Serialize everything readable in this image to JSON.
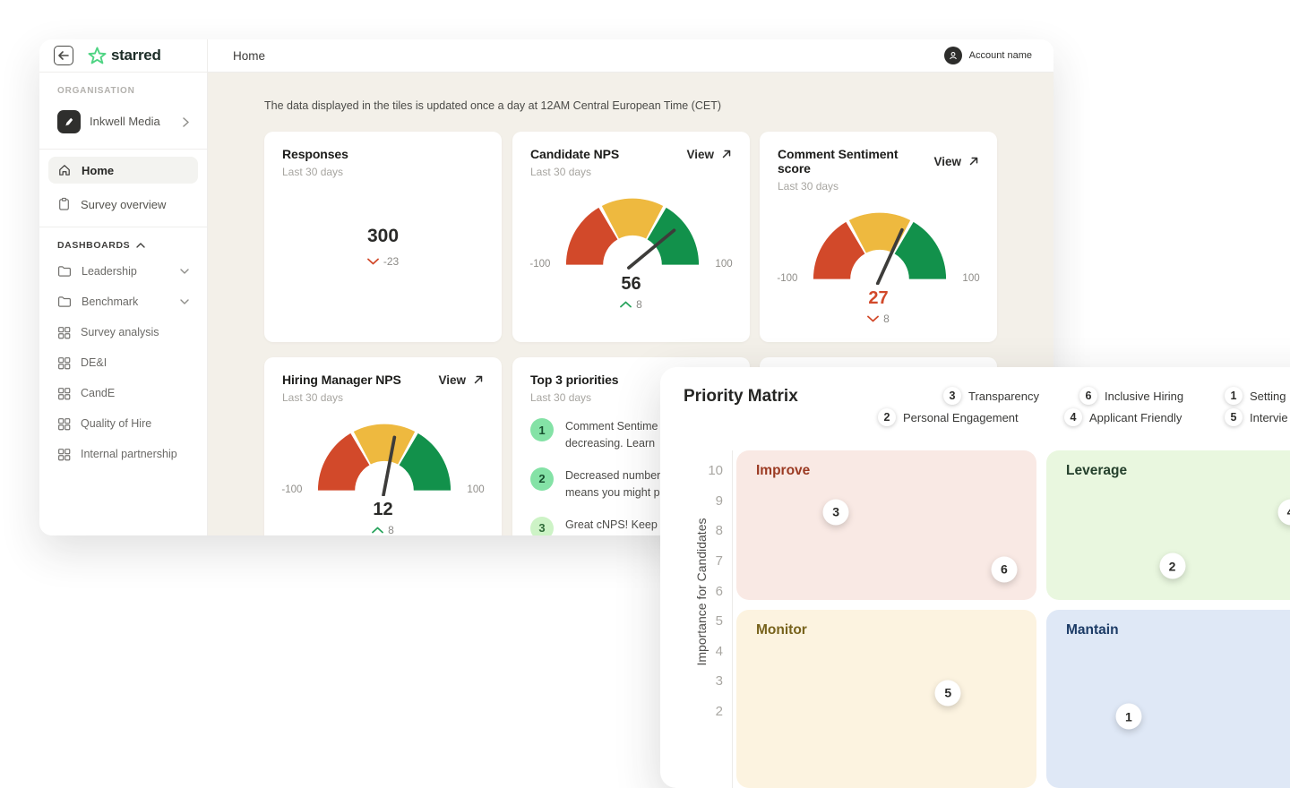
{
  "header": {
    "title": "Home",
    "account_name": "Account name"
  },
  "sidebar": {
    "brand": "starred",
    "org_label": "ORGANISATION",
    "org_name": "Inkwell Media",
    "nav": [
      {
        "label": "Home"
      },
      {
        "label": "Survey overview"
      }
    ],
    "dash_label": "DASHBOARDS",
    "dash_items": [
      {
        "label": "Leadership"
      },
      {
        "label": "Benchmark"
      },
      {
        "label": "Survey analysis"
      },
      {
        "label": "DE&I"
      },
      {
        "label": "CandE"
      },
      {
        "label": "Quality of Hire"
      },
      {
        "label": "Internal partnership"
      }
    ]
  },
  "notice": "The data displayed in the tiles is updated once a day at 12AM Central European Time (CET)",
  "tiles": {
    "responses": {
      "title": "Responses",
      "subtitle": "Last 30 days",
      "value": "300",
      "delta": "-23",
      "delta_dir": "down"
    },
    "candidate_nps": {
      "title": "Candidate NPS",
      "view": "View",
      "subtitle": "Last 30 days",
      "value": 56,
      "delta": "8",
      "delta_dir": "up",
      "min": "-100",
      "max": "100"
    },
    "comment_sentiment": {
      "title": "Comment Sentiment score",
      "view": "View",
      "subtitle": "Last 30 days",
      "value": 27,
      "delta": "8",
      "delta_dir": "down",
      "min": "-100",
      "max": "100",
      "value_color": "#d2492a"
    },
    "hiring_manager": {
      "title": "Hiring Manager NPS",
      "view": "View",
      "subtitle": "Last 30 days",
      "value": 12,
      "delta": "8",
      "delta_dir": "up",
      "min": "-100",
      "max": "100"
    },
    "priorities": {
      "title": "Top 3 priorities",
      "subtitle": "Last 30 days",
      "items": [
        {
          "num": "1",
          "line1": "Comment Sentime",
          "line2": "decreasing. Learn"
        },
        {
          "num": "2",
          "line1": "Decreased number",
          "line2": "means you might p"
        },
        {
          "num": "3",
          "line1": "Great cNPS! Keep t",
          "line2": ""
        }
      ]
    }
  },
  "priority_matrix": {
    "title": "Priority Matrix",
    "legend": [
      {
        "num": "3",
        "label": "Transparency"
      },
      {
        "num": "6",
        "label": "Inclusive Hiring"
      },
      {
        "num": "1",
        "label": "Setting"
      },
      {
        "num": "2",
        "label": "Personal Engagement"
      },
      {
        "num": "4",
        "label": "Applicant Friendly"
      },
      {
        "num": "5",
        "label": "Intervie"
      }
    ],
    "quadrants": {
      "top_left": "Improve",
      "top_right": "Leverage",
      "bottom_left": "Monitor",
      "bottom_right": "Mantain"
    },
    "ylabel": "Importance for Candidates",
    "yticks": [
      "10",
      "9",
      "8",
      "7",
      "6",
      "5",
      "4",
      "3",
      "2"
    ],
    "chart_data": {
      "type": "scatter",
      "title": "Priority Matrix",
      "ylabel": "Importance for Candidates",
      "y_ticks": [
        10,
        9,
        8,
        7,
        6,
        5,
        4,
        3,
        2
      ],
      "xlim": [
        0,
        10
      ],
      "ylim": [
        0,
        10
      ],
      "points": [
        {
          "id": 1,
          "x": 6.3,
          "y": 1.9,
          "quadrant": "Mantain"
        },
        {
          "id": 2,
          "x": 7.0,
          "y": 6.9,
          "quadrant": "Leverage"
        },
        {
          "id": 3,
          "x": 1.6,
          "y": 8.7,
          "quadrant": "Improve"
        },
        {
          "id": 4,
          "x": 8.9,
          "y": 8.7,
          "quadrant": "Leverage"
        },
        {
          "id": 5,
          "x": 3.4,
          "y": 2.7,
          "quadrant": "Monitor"
        },
        {
          "id": 6,
          "x": 4.3,
          "y": 6.8,
          "quadrant": "Improve"
        }
      ]
    },
    "gauge_colors": {
      "red": "#d2492a",
      "yellow": "#eeb93f",
      "green": "#12914b"
    }
  }
}
